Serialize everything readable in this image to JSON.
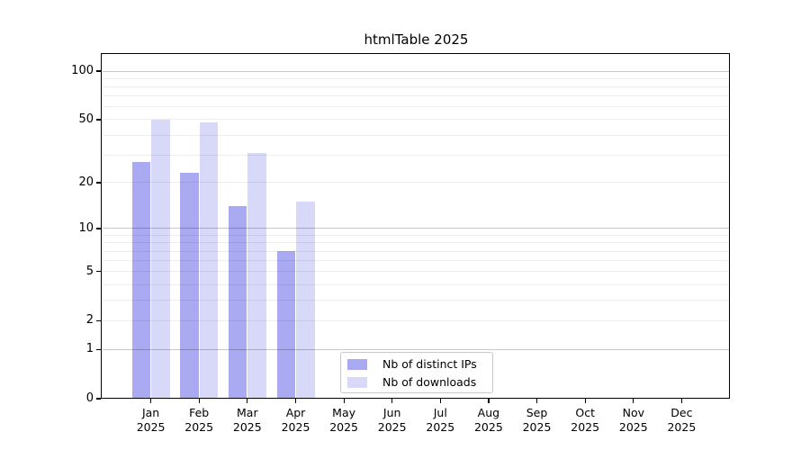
{
  "chart_data": {
    "type": "bar",
    "title": "htmlTable 2025",
    "year_label": "2025",
    "categories": [
      "Jan",
      "Feb",
      "Mar",
      "Apr",
      "May",
      "Jun",
      "Jul",
      "Aug",
      "Sep",
      "Oct",
      "Nov",
      "Dec"
    ],
    "series": [
      {
        "name": "Nb of distinct IPs",
        "color": "#aaaaf2",
        "values": [
          27,
          23,
          14,
          7,
          0,
          0,
          0,
          0,
          0,
          0,
          0,
          0
        ]
      },
      {
        "name": "Nb of downloads",
        "color": "#d8d8f9",
        "values": [
          50,
          48,
          31,
          15,
          0,
          0,
          0,
          0,
          0,
          0,
          0,
          0
        ]
      }
    ],
    "yscale": "log1p",
    "ylim": [
      0,
      125
    ],
    "yticks": [
      0,
      1,
      2,
      5,
      10,
      20,
      50,
      100
    ],
    "major_gridlines": [
      1,
      10,
      100
    ],
    "minor_gridlines": [
      2,
      3,
      4,
      5,
      6,
      7,
      8,
      9,
      20,
      30,
      40,
      50,
      60,
      70,
      80,
      90
    ],
    "grid": true,
    "legend_position": "bottom-center",
    "background": "#ffffff",
    "spine_color": "#000000"
  }
}
